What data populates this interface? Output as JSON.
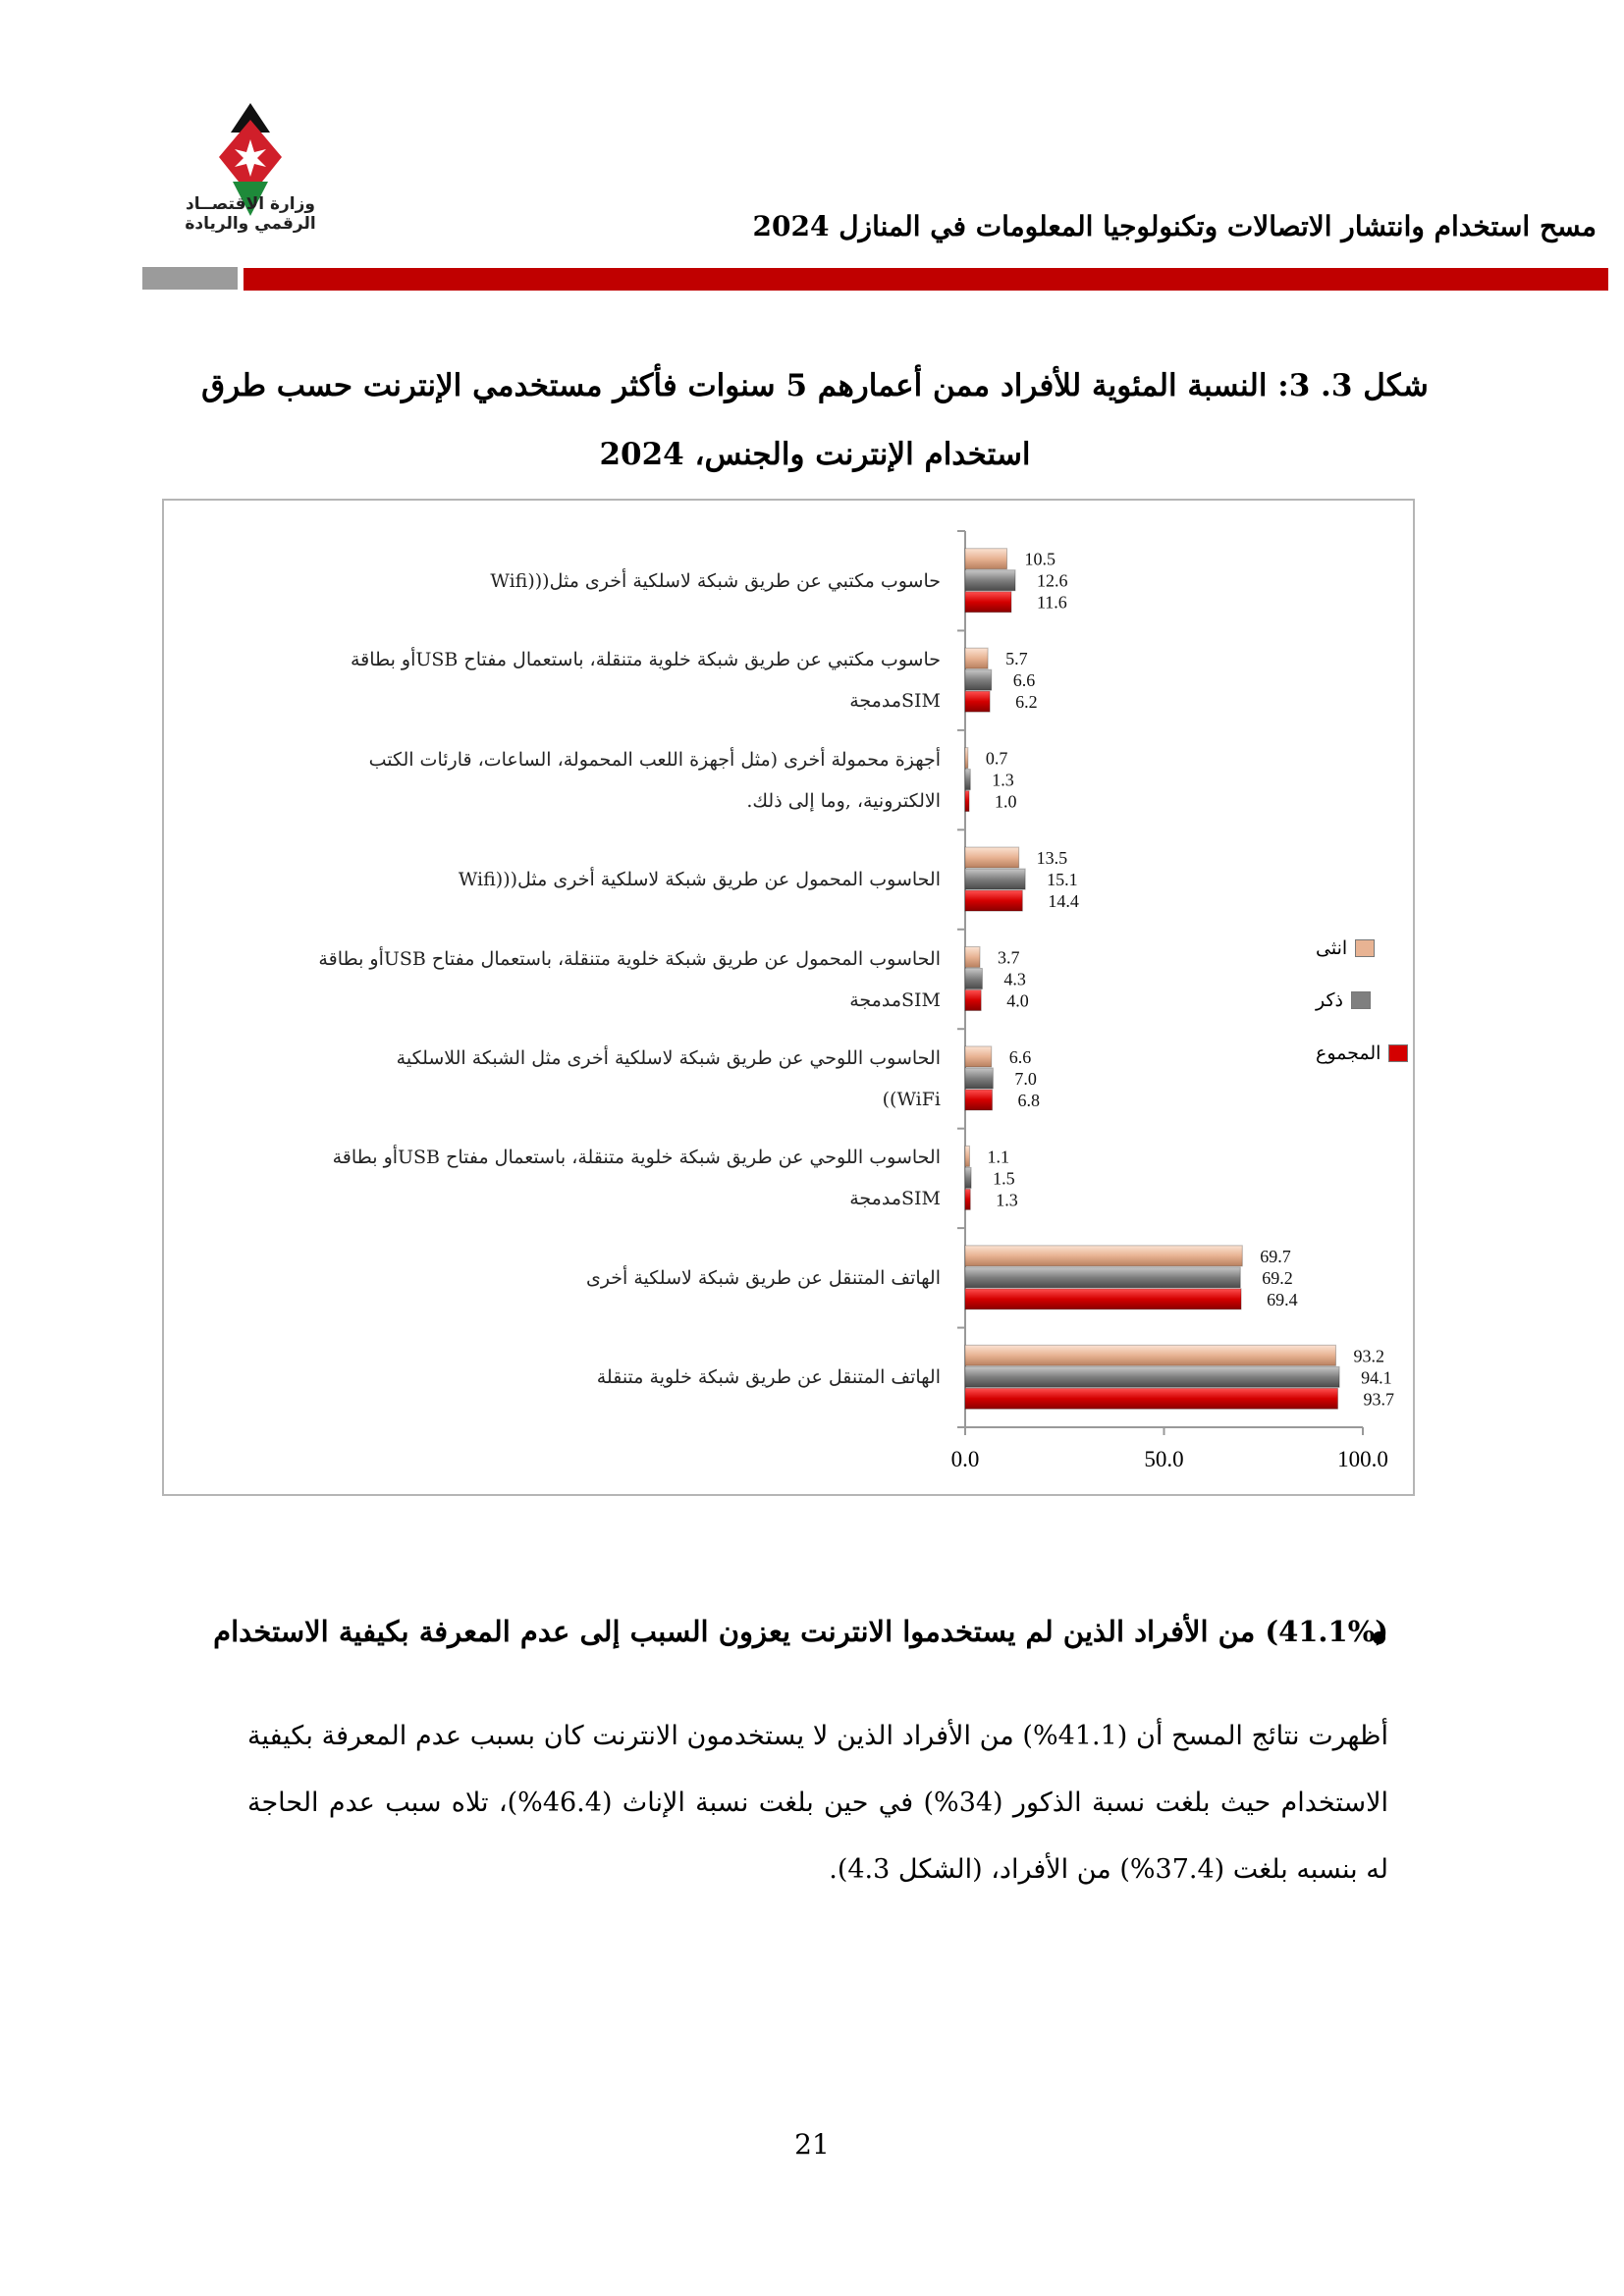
{
  "header": {
    "title": "مسح استخدام وانتشار الاتصالات وتكنولوجيا المعلومات في المنازل 2024",
    "logo_text_1": "وزارة الاقتصــاد",
    "logo_text_2": "الرقمي والريادة"
  },
  "figure": {
    "title_line_1": "شكل 3. 3: النسبة المئوية للأفراد ممن أعمارهم 5 سنوات فأكثر مستخدمي الإنترنت حسب طرق",
    "title_line_2": "استخدام الإنترنت والجنس، 2024"
  },
  "chart_data": {
    "type": "bar",
    "orientation": "horizontal",
    "categories": [
      "حاسوب مكتبي عن طريق شبكة لاسلكية أخرى مثل(((Wifi",
      "حاسوب مكتبي عن طريق شبكة خلوية متنقلة، باستعمال مفتاح USBأو بطاقة SIMمدمجة",
      "أجهزة محمولة أخرى (مثل أجهزة اللعب المحمولة، الساعات، قارئات الكتب الالكترونية، ,وما إلى ذلك.",
      "الحاسوب المحمول عن طريق شبكة لاسلكية أخرى مثل(((Wifi",
      "الحاسوب المحمول عن طريق شبكة خلوية متنقلة، باستعمال مفتاح USBأو بطاقة SIMمدمجة",
      "الحاسوب اللوحي عن طريق شبكة لاسلكية أخرى مثل الشبكة اللاسلكية WiFi))",
      "الحاسوب اللوحي عن طريق شبكة خلوية متنقلة، باستعمال مفتاح USBأو بطاقة SIMمدمجة",
      "الهاتف المتنقل عن طريق شبكة لاسلكية أخرى",
      "الهاتف المتنقل عن طريق شبكة خلوية متنقلة"
    ],
    "category_lines": [
      [
        "حاسوب مكتبي عن طريق شبكة لاسلكية أخرى مثل(((Wifi"
      ],
      [
        "حاسوب مكتبي عن طريق شبكة خلوية متنقلة، باستعمال مفتاح USBأو بطاقة",
        "SIMمدمجة"
      ],
      [
        "أجهزة محمولة أخرى (مثل أجهزة اللعب المحمولة، الساعات، قارئات الكتب",
        "الالكترونية، ,وما إلى ذلك."
      ],
      [
        "الحاسوب المحمول عن طريق شبكة لاسلكية أخرى مثل(((Wifi"
      ],
      [
        "الحاسوب المحمول عن طريق شبكة خلوية متنقلة، باستعمال مفتاح USBأو بطاقة",
        "SIMمدمجة"
      ],
      [
        "الحاسوب اللوحي عن طريق شبكة لاسلكية أخرى مثل الشبكة اللاسلكية",
        "WiFi))"
      ],
      [
        "الحاسوب اللوحي عن طريق شبكة خلوية متنقلة، باستعمال مفتاح USBأو بطاقة",
        "SIMمدمجة"
      ],
      [
        "الهاتف المتنقل عن طريق شبكة لاسلكية أخرى"
      ],
      [
        "الهاتف المتنقل عن طريق شبكة خلوية متنقلة"
      ]
    ],
    "series": [
      {
        "name": "انثى",
        "color": "#e8b393",
        "values": [
          10.5,
          5.7,
          0.7,
          13.5,
          3.7,
          6.6,
          1.1,
          69.7,
          93.2
        ]
      },
      {
        "name": "ذكر",
        "color": "#7f7f7f",
        "values": [
          12.6,
          6.6,
          1.3,
          15.1,
          4.3,
          7.0,
          1.5,
          69.2,
          94.1
        ]
      },
      {
        "name": "المجموع",
        "color": "#d40000",
        "values": [
          11.6,
          6.2,
          1.0,
          14.4,
          4.0,
          6.8,
          1.3,
          69.4,
          93.7
        ]
      }
    ],
    "xlim": [
      0,
      100
    ],
    "x_ticks": [
      "0.0",
      "50.0",
      "100.0"
    ],
    "x_tick_values": [
      0,
      50,
      100
    ],
    "legend_position": "right",
    "grid": false
  },
  "body": {
    "bullet_heading": "(41.1%) من الأفراد الذين لم يستخدموا الانترنت يعزون السبب إلى عدم المعرفة بكيفية الاستخدام",
    "paragraph": "أظهرت نتائج المسح أن (41.1%) من الأفراد الذين لا يستخدمون الانترنت كان بسبب عدم المعرفة بكيفية الاستخدام حيث بلغت نسبة الذكور (34%) في حين بلغت نسبة الإناث (46.4%)، تلاه سبب عدم الحاجة له بنسبه بلغت (37.4%) من الأفراد، (الشكل 4.3).",
    "page_number": "21"
  }
}
